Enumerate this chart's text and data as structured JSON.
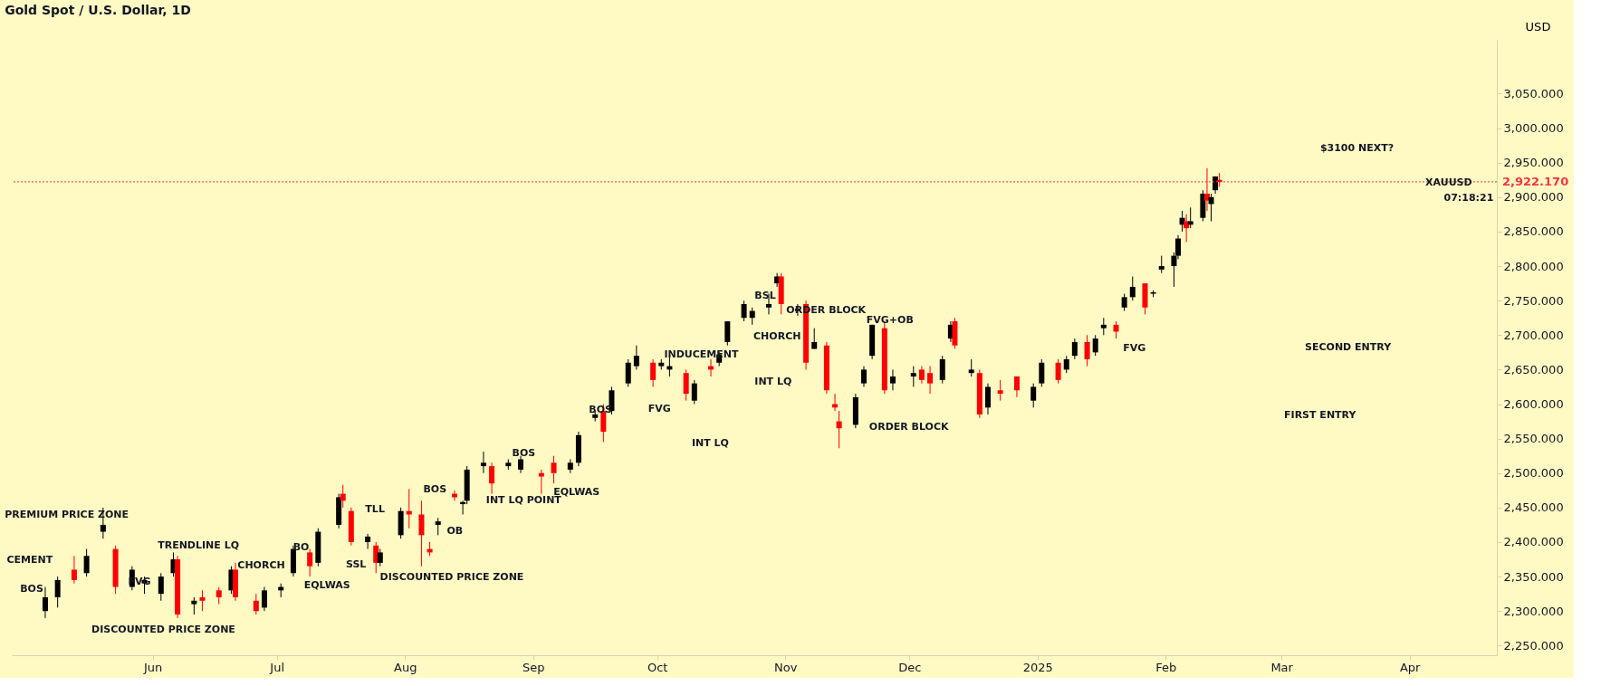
{
  "chart_data": {
    "type": "candlestick",
    "title": "Gold Spot / U.S. Dollar, 1D",
    "ylabel": "USD",
    "x": [
      "2024-05-06",
      "2024-05-09",
      "2024-05-13",
      "2024-05-16",
      "2024-05-20",
      "2024-05-23",
      "2024-05-27",
      "2024-05-30",
      "2024-06-03",
      "2024-06-06",
      "2024-06-07",
      "2024-06-11",
      "2024-06-13",
      "2024-06-17",
      "2024-06-20",
      "2024-06-21",
      "2024-06-26",
      "2024-06-28",
      "2024-07-02",
      "2024-07-05",
      "2024-07-09",
      "2024-07-11",
      "2024-07-16",
      "2024-07-17",
      "2024-07-19",
      "2024-07-23",
      "2024-07-25",
      "2024-07-26",
      "2024-07-31",
      "2024-08-02",
      "2024-08-05",
      "2024-08-07",
      "2024-08-09",
      "2024-08-13",
      "2024-08-15",
      "2024-08-16",
      "2024-08-20",
      "2024-08-22",
      "2024-08-26",
      "2024-08-29",
      "2024-09-03",
      "2024-09-06",
      "2024-09-10",
      "2024-09-12",
      "2024-09-16",
      "2024-09-18",
      "2024-09-20",
      "2024-09-24",
      "2024-09-26",
      "2024-09-30",
      "2024-10-02",
      "2024-10-04",
      "2024-10-08",
      "2024-10-10",
      "2024-10-14",
      "2024-10-16",
      "2024-10-18",
      "2024-10-22",
      "2024-10-24",
      "2024-10-28",
      "2024-10-30",
      "2024-10-31",
      "2024-11-04",
      "2024-11-06",
      "2024-11-08",
      "2024-11-11",
      "2024-11-13",
      "2024-11-14",
      "2024-11-18",
      "2024-11-20",
      "2024-11-22",
      "2024-11-25",
      "2024-11-27",
      "2024-12-02",
      "2024-12-04",
      "2024-12-06",
      "2024-12-09",
      "2024-12-11",
      "2024-12-12",
      "2024-12-16",
      "2024-12-18",
      "2024-12-20",
      "2024-12-23",
      "2024-12-27",
      "2024-12-31",
      "2025-01-02",
      "2025-01-06",
      "2025-01-08",
      "2025-01-10",
      "2025-01-13",
      "2025-01-15",
      "2025-01-17",
      "2025-01-20",
      "2025-01-22",
      "2025-01-24",
      "2025-01-27",
      "2025-01-29",
      "2025-01-31",
      "2025-02-03",
      "2025-02-04",
      "2025-02-05",
      "2025-02-06",
      "2025-02-07",
      "2025-02-10",
      "2025-02-11",
      "2025-02-12",
      "2025-02-13",
      "2025-02-14"
    ],
    "ohlc": [
      [
        2300,
        2335,
        2290,
        2320
      ],
      [
        2320,
        2350,
        2305,
        2345
      ],
      [
        2360,
        2380,
        2340,
        2345
      ],
      [
        2355,
        2390,
        2350,
        2380
      ],
      [
        2415,
        2450,
        2405,
        2425
      ],
      [
        2390,
        2395,
        2325,
        2335
      ],
      [
        2335,
        2365,
        2330,
        2360
      ],
      [
        2340,
        2350,
        2325,
        2345
      ],
      [
        2325,
        2355,
        2315,
        2350
      ],
      [
        2355,
        2385,
        2350,
        2375
      ],
      [
        2375,
        2380,
        2290,
        2295
      ],
      [
        2310,
        2320,
        2295,
        2315
      ],
      [
        2320,
        2330,
        2300,
        2315
      ],
      [
        2330,
        2335,
        2310,
        2320
      ],
      [
        2330,
        2365,
        2325,
        2360
      ],
      [
        2360,
        2370,
        2315,
        2320
      ],
      [
        2315,
        2325,
        2295,
        2300
      ],
      [
        2305,
        2335,
        2300,
        2330
      ],
      [
        2330,
        2340,
        2320,
        2335
      ],
      [
        2355,
        2395,
        2350,
        2390
      ],
      [
        2385,
        2390,
        2350,
        2365
      ],
      [
        2370,
        2420,
        2365,
        2415
      ],
      [
        2425,
        2470,
        2420,
        2465
      ],
      [
        2470,
        2483,
        2450,
        2460
      ],
      [
        2445,
        2450,
        2395,
        2400
      ],
      [
        2400,
        2412,
        2390,
        2408
      ],
      [
        2395,
        2400,
        2355,
        2370
      ],
      [
        2370,
        2390,
        2365,
        2385
      ],
      [
        2410,
        2450,
        2405,
        2445
      ],
      [
        2445,
        2477,
        2420,
        2440
      ],
      [
        2440,
        2460,
        2365,
        2410
      ],
      [
        2390,
        2400,
        2380,
        2385
      ],
      [
        2425,
        2435,
        2410,
        2430
      ],
      [
        2470,
        2475,
        2460,
        2465
      ],
      [
        2455,
        2460,
        2440,
        2458
      ],
      [
        2460,
        2510,
        2455,
        2505
      ],
      [
        2510,
        2531,
        2500,
        2515
      ],
      [
        2510,
        2515,
        2470,
        2485
      ],
      [
        2510,
        2520,
        2505,
        2515
      ],
      [
        2505,
        2525,
        2500,
        2520
      ],
      [
        2500,
        2505,
        2470,
        2495
      ],
      [
        2515,
        2525,
        2485,
        2500
      ],
      [
        2505,
        2520,
        2500,
        2515
      ],
      [
        2515,
        2560,
        2510,
        2555
      ],
      [
        2580,
        2590,
        2575,
        2585
      ],
      [
        2590,
        2600,
        2545,
        2560
      ],
      [
        2590,
        2625,
        2585,
        2620
      ],
      [
        2630,
        2665,
        2625,
        2660
      ],
      [
        2655,
        2685,
        2650,
        2670
      ],
      [
        2660,
        2665,
        2625,
        2635
      ],
      [
        2655,
        2665,
        2650,
        2660
      ],
      [
        2650,
        2670,
        2640,
        2655
      ],
      [
        2645,
        2650,
        2605,
        2615
      ],
      [
        2605,
        2635,
        2600,
        2630
      ],
      [
        2655,
        2665,
        2640,
        2650
      ],
      [
        2660,
        2675,
        2655,
        2672
      ],
      [
        2690,
        2720,
        2685,
        2720
      ],
      [
        2725,
        2750,
        2720,
        2745
      ],
      [
        2725,
        2740,
        2715,
        2735
      ],
      [
        2740,
        2760,
        2730,
        2745
      ],
      [
        2775,
        2790,
        2770,
        2785
      ],
      [
        2785,
        2790,
        2730,
        2745
      ],
      [
        2735,
        2745,
        2728,
        2738
      ],
      [
        2745,
        2750,
        2650,
        2660
      ],
      [
        2680,
        2710,
        2680,
        2690
      ],
      [
        2685,
        2690,
        2615,
        2620
      ],
      [
        2600,
        2615,
        2590,
        2595
      ],
      [
        2575,
        2590,
        2536,
        2565
      ],
      [
        2570,
        2615,
        2565,
        2610
      ],
      [
        2630,
        2655,
        2625,
        2650
      ],
      [
        2670,
        2715,
        2665,
        2715
      ],
      [
        2710,
        2720,
        2615,
        2620
      ],
      [
        2630,
        2650,
        2620,
        2640
      ],
      [
        2640,
        2655,
        2625,
        2645
      ],
      [
        2650,
        2655,
        2630,
        2635
      ],
      [
        2645,
        2655,
        2615,
        2630
      ],
      [
        2635,
        2670,
        2630,
        2665
      ],
      [
        2695,
        2720,
        2690,
        2715
      ],
      [
        2720,
        2725,
        2680,
        2685
      ],
      [
        2645,
        2665,
        2640,
        2650
      ],
      [
        2645,
        2650,
        2580,
        2585
      ],
      [
        2595,
        2630,
        2585,
        2625
      ],
      [
        2620,
        2635,
        2605,
        2615
      ],
      [
        2640,
        2640,
        2610,
        2620
      ],
      [
        2605,
        2630,
        2595,
        2625
      ],
      [
        2630,
        2665,
        2625,
        2660
      ],
      [
        2660,
        2665,
        2630,
        2635
      ],
      [
        2650,
        2670,
        2645,
        2665
      ],
      [
        2670,
        2695,
        2665,
        2690
      ],
      [
        2690,
        2700,
        2655,
        2665
      ],
      [
        2675,
        2700,
        2670,
        2695
      ],
      [
        2710,
        2725,
        2700,
        2715
      ],
      [
        2715,
        2720,
        2695,
        2705
      ],
      [
        2740,
        2760,
        2735,
        2755
      ],
      [
        2755,
        2785,
        2750,
        2770
      ],
      [
        2775,
        2775,
        2730,
        2740
      ],
      [
        2760,
        2765,
        2755,
        2762
      ],
      [
        2795,
        2815,
        2790,
        2800
      ],
      [
        2800,
        2820,
        2770,
        2815
      ],
      [
        2815,
        2845,
        2810,
        2840
      ],
      [
        2860,
        2880,
        2850,
        2870
      ],
      [
        2865,
        2875,
        2835,
        2855
      ],
      [
        2860,
        2885,
        2855,
        2865
      ],
      [
        2870,
        2910,
        2865,
        2905
      ],
      [
        2905,
        2942,
        2880,
        2895
      ],
      [
        2890,
        2905,
        2865,
        2900
      ],
      [
        2910,
        2930,
        2905,
        2930
      ],
      [
        2925,
        2935,
        2915,
        2922
      ]
    ],
    "colors": [
      "#000000",
      "#000000",
      "#ff0000",
      "#000000",
      "#000000",
      "#ff0000",
      "#000000",
      "#000000",
      "#000000",
      "#000000",
      "#ff0000",
      "#000000",
      "#ff0000",
      "#ff0000",
      "#000000",
      "#ff0000",
      "#ff0000",
      "#000000",
      "#000000",
      "#000000",
      "#ff0000",
      "#000000",
      "#000000",
      "#ff0000",
      "#ff0000",
      "#000000",
      "#ff0000",
      "#000000",
      "#000000",
      "#ff0000",
      "#ff0000",
      "#ff0000",
      "#000000",
      "#ff0000",
      "#000000",
      "#000000",
      "#000000",
      "#ff0000",
      "#000000",
      "#000000",
      "#ff0000",
      "#ff0000",
      "#000000",
      "#000000",
      "#000000",
      "#ff0000",
      "#000000",
      "#000000",
      "#000000",
      "#ff0000",
      "#000000",
      "#000000",
      "#ff0000",
      "#000000",
      "#ff0000",
      "#000000",
      "#000000",
      "#000000",
      "#000000",
      "#000000",
      "#000000",
      "#ff0000",
      "#000000",
      "#ff0000",
      "#000000",
      "#ff0000",
      "#ff0000",
      "#ff0000",
      "#000000",
      "#000000",
      "#000000",
      "#ff0000",
      "#000000",
      "#000000",
      "#ff0000",
      "#ff0000",
      "#000000",
      "#000000",
      "#ff0000",
      "#000000",
      "#ff0000",
      "#000000",
      "#ff0000",
      "#ff0000",
      "#000000",
      "#000000",
      "#ff0000",
      "#000000",
      "#000000",
      "#ff0000",
      "#000000",
      "#000000",
      "#ff0000",
      "#000000",
      "#000000",
      "#ff0000",
      "#000000",
      "#000000",
      "#000000",
      "#000000",
      "#000000",
      "#ff0000",
      "#000000",
      "#000000",
      "#ff0000",
      "#000000",
      "#000000",
      "#ff0000"
    ],
    "xlim": [
      "2024-04-29",
      "2025-04-21"
    ],
    "xticks": [
      {
        "value": "2024-06-01",
        "label": "Jun"
      },
      {
        "value": "2024-07-01",
        "label": "Jul"
      },
      {
        "value": "2024-08-01",
        "label": "Aug"
      },
      {
        "value": "2024-09-01",
        "label": "Sep"
      },
      {
        "value": "2024-10-01",
        "label": "Oct"
      },
      {
        "value": "2024-11-01",
        "label": "Nov"
      },
      {
        "value": "2024-12-01",
        "label": "Dec"
      },
      {
        "value": "2025-01-01",
        "label": "2025"
      },
      {
        "value": "2025-02-01",
        "label": "Feb"
      },
      {
        "value": "2025-03-01",
        "label": "Mar"
      },
      {
        "value": "2025-04-01",
        "label": "Apr"
      }
    ],
    "ylim": [
      2236,
      3128
    ],
    "yticks": [
      {
        "value": 2250,
        "label": "2,250.000"
      },
      {
        "value": 2300,
        "label": "2,300.000"
      },
      {
        "value": 2350,
        "label": "2,350.000"
      },
      {
        "value": 2400,
        "label": "2,400.000"
      },
      {
        "value": 2450,
        "label": "2,450.000"
      },
      {
        "value": 2500,
        "label": "2,500.000"
      },
      {
        "value": 2550,
        "label": "2,550.000"
      },
      {
        "value": 2600,
        "label": "2,600.000"
      },
      {
        "value": 2650,
        "label": "2,650.000"
      },
      {
        "value": 2700,
        "label": "2,700.000"
      },
      {
        "value": 2750,
        "label": "2,750.000"
      },
      {
        "value": 2800,
        "label": "2,800.000"
      },
      {
        "value": 2850,
        "label": "2,850.000"
      },
      {
        "value": 2900,
        "label": "2,900.000"
      },
      {
        "value": 2950,
        "label": "2,950.000"
      },
      {
        "value": 3000,
        "label": "3,000.000"
      },
      {
        "value": 3050,
        "label": "3,050.000"
      }
    ],
    "ref_lines": [
      {
        "axis": "y",
        "value": 2922.17,
        "label": "2,922.170",
        "color": "#f23645",
        "line_style": "dotted"
      }
    ],
    "grid": false,
    "annotations": [
      "PREMIUM PRICE ZONE",
      "CEMENT",
      "BOS",
      "FVG",
      "TRENDLINE LQ",
      "CHORCH",
      "DISCOUNTED PRICE ZONE",
      "BO",
      "EQLWAS",
      "TLL",
      "SSL",
      "BOS",
      "OB",
      "DISCOUNTED PRICE ZONE",
      "BOS",
      "INT LQ POINT",
      "EQLWAS",
      "BOS",
      "FVG",
      "INT LQ",
      "INDUCEMENT",
      "INT LQ",
      "CHORCH",
      "BSL",
      "ORDER BLOCK",
      "FVG+OB",
      "ORDER BLOCK",
      "FVG",
      "FIRST ENTRY",
      "SECOND ENTRY",
      "$3100 NEXT?",
      "XAUUSD",
      "07:18:21"
    ]
  }
}
